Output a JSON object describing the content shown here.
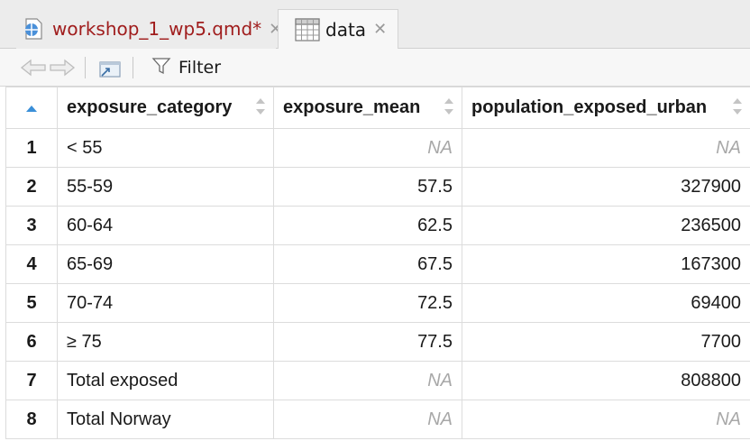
{
  "tabs": [
    {
      "label": "workshop_1_wp5.qmd*",
      "icon": "quarto-document-icon",
      "active": false
    },
    {
      "label": "data",
      "icon": "data-grid-icon",
      "active": true
    }
  ],
  "toolbar": {
    "filter_label": "Filter"
  },
  "table": {
    "columns": [
      "exposure_category",
      "exposure_mean",
      "population_exposed_urban"
    ],
    "rows": [
      {
        "n": "1",
        "cells": [
          "< 55",
          "NA",
          "NA"
        ]
      },
      {
        "n": "2",
        "cells": [
          "55-59",
          "57.5",
          "327900"
        ]
      },
      {
        "n": "3",
        "cells": [
          "60-64",
          "62.5",
          "236500"
        ]
      },
      {
        "n": "4",
        "cells": [
          "65-69",
          "67.5",
          "167300"
        ]
      },
      {
        "n": "5",
        "cells": [
          "70-74",
          "72.5",
          "69400"
        ]
      },
      {
        "n": "6",
        "cells": [
          "≥ 75",
          "77.5",
          "7700"
        ]
      },
      {
        "n": "7",
        "cells": [
          "Total exposed",
          "NA",
          "808800"
        ]
      },
      {
        "n": "8",
        "cells": [
          "Total Norway",
          "NA",
          "NA"
        ]
      }
    ]
  },
  "colors": {
    "modified_tab_text": "#a01d1d",
    "na_text": "#a8a8a8",
    "sort_active": "#3a8fd8"
  }
}
